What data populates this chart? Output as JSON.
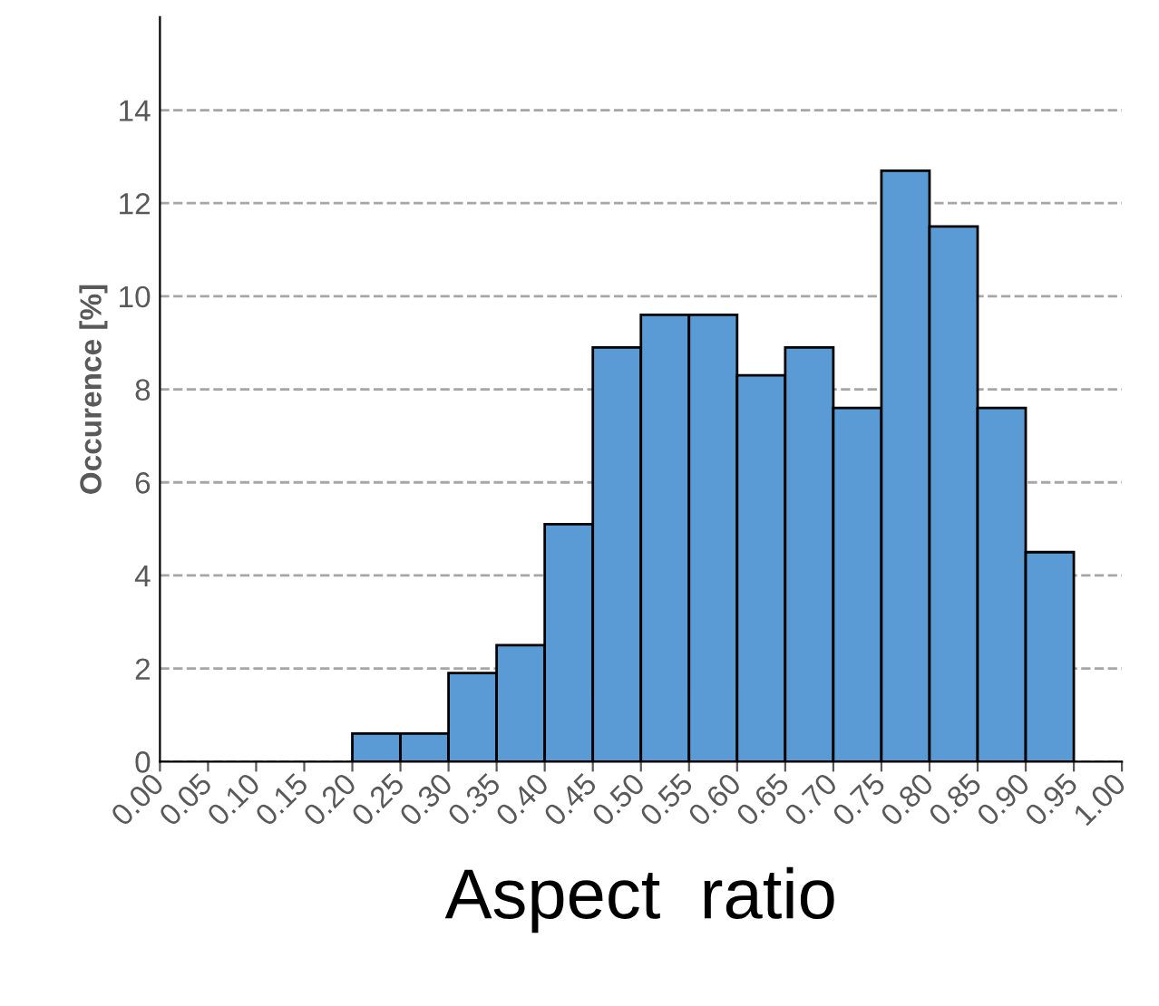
{
  "chart_data": {
    "type": "histogram",
    "xlabel": "Aspect  ratio",
    "ylabel": "Occurence [%]",
    "bins": [
      0.0,
      0.05,
      0.1,
      0.15,
      0.2,
      0.25,
      0.3,
      0.35,
      0.4,
      0.45,
      0.5,
      0.55,
      0.6,
      0.65,
      0.7,
      0.75,
      0.8,
      0.85,
      0.9,
      0.95,
      1.0
    ],
    "values": [
      0,
      0,
      0,
      0,
      0.6,
      0.6,
      1.9,
      2.5,
      5.1,
      8.9,
      9.6,
      9.6,
      8.3,
      8.9,
      7.6,
      12.7,
      11.5,
      7.6,
      4.5,
      0
    ],
    "color": "#5b9bd5",
    "xlim": [
      0,
      1
    ],
    "xticks": [
      {
        "value": 0.0,
        "label": "0.00"
      },
      {
        "value": 0.05,
        "label": "0.05"
      },
      {
        "value": 0.1,
        "label": "0.10"
      },
      {
        "value": 0.15,
        "label": "0.15"
      },
      {
        "value": 0.2,
        "label": "0.20"
      },
      {
        "value": 0.25,
        "label": "0.25"
      },
      {
        "value": 0.3,
        "label": "0.30"
      },
      {
        "value": 0.35,
        "label": "0.35"
      },
      {
        "value": 0.4,
        "label": "0.40"
      },
      {
        "value": 0.45,
        "label": "0.45"
      },
      {
        "value": 0.5,
        "label": "0.50"
      },
      {
        "value": 0.55,
        "label": "0.55"
      },
      {
        "value": 0.6,
        "label": "0.60"
      },
      {
        "value": 0.65,
        "label": "0.65"
      },
      {
        "value": 0.7,
        "label": "0.70"
      },
      {
        "value": 0.75,
        "label": "0.75"
      },
      {
        "value": 0.8,
        "label": "0.80"
      },
      {
        "value": 0.85,
        "label": "0.85"
      },
      {
        "value": 0.9,
        "label": "0.90"
      },
      {
        "value": 0.95,
        "label": "0.95"
      },
      {
        "value": 1.0,
        "label": "1.00"
      }
    ],
    "ylim": [
      0,
      16
    ],
    "yticks": [
      0,
      2,
      4,
      6,
      8,
      10,
      12,
      14
    ],
    "grid": "y",
    "line_style": "dashed"
  }
}
